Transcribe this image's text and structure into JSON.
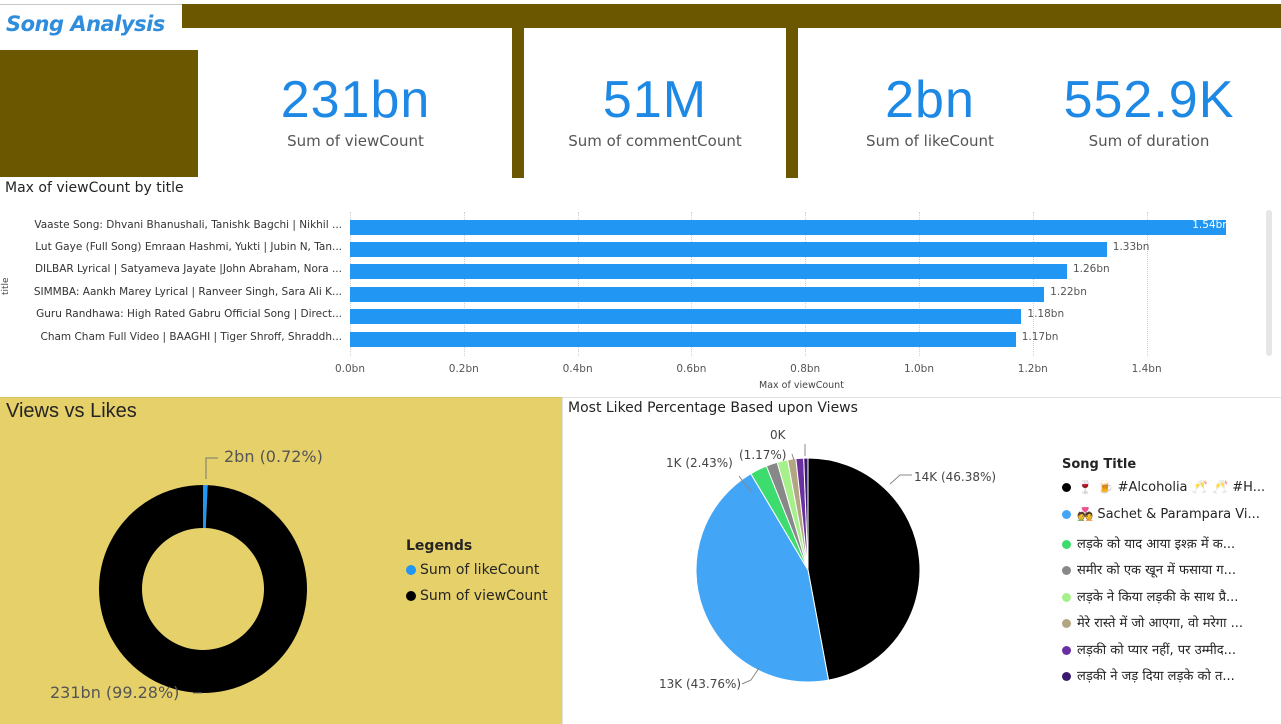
{
  "header": {
    "title": "Song Analysis"
  },
  "kpis": [
    {
      "value": "231bn",
      "label": "Sum of viewCount"
    },
    {
      "value": "51M",
      "label": "Sum of commentCount"
    },
    {
      "value": "2bn",
      "label": "Sum of likeCount"
    },
    {
      "value": "552.9K",
      "label": "Sum of duration"
    }
  ],
  "colors": {
    "olive": "#6b5700",
    "accent": "#1e88e5",
    "bar": "#2196f3",
    "panel": "#e5d06a"
  },
  "chart_data": [
    {
      "type": "bar",
      "orientation": "horizontal",
      "title": "Max of viewCount by title",
      "xlabel": "Max of viewCount",
      "ylabel": "title",
      "categories": [
        "Vaaste Song: Dhvani Bhanushali, Tanishk Bagchi | Nikhil ...",
        "Lut Gaye (Full Song) Emraan Hashmi, Yukti | Jubin N, Tan...",
        "DILBAR Lyrical | Satyameva Jayate |John Abraham, Nora ...",
        "SIMMBA: Aankh Marey Lyrical | Ranveer Singh, Sara Ali K...",
        "Guru Randhawa: High Rated Gabru Official Song | Direct...",
        "Cham Cham Full Video | BAAGHI | Tiger Shroff, Shraddh..."
      ],
      "values": [
        1.54,
        1.33,
        1.26,
        1.22,
        1.18,
        1.17
      ],
      "value_labels": [
        "1.54bn",
        "1.33bn",
        "1.26bn",
        "1.22bn",
        "1.18bn",
        "1.17bn"
      ],
      "xlim": [
        0,
        1.6
      ],
      "xticks": [
        0,
        0.2,
        0.4,
        0.6,
        0.8,
        1.0,
        1.2,
        1.4
      ],
      "xtick_labels": [
        "0.0bn",
        "0.2bn",
        "0.4bn",
        "0.6bn",
        "0.8bn",
        "1.0bn",
        "1.2bn",
        "1.4bn"
      ],
      "grid": true
    },
    {
      "type": "pie",
      "variant": "donut",
      "title": "Views vs Likes",
      "legend_title": "Legends",
      "series": [
        {
          "name": "Sum of likeCount",
          "value": 0.72,
          "label": "2bn (0.72%)",
          "color": "#2196f3"
        },
        {
          "name": "Sum of viewCount",
          "value": 99.28,
          "label": "231bn (99.28%)",
          "color": "#000000"
        }
      ]
    },
    {
      "type": "pie",
      "title": "Most Liked Percentage Based upon Views",
      "legend_title": "Song Title",
      "slices": [
        {
          "name": "🍷 🍺 #Alcoholia 🥂 🥂 #H...",
          "value": 46.38,
          "label": "14K (46.38%)",
          "color": "#000000"
        },
        {
          "name": "💑 Sachet & Parampara Vi...",
          "value": 43.76,
          "label": "13K (43.76%)",
          "color": "#42a5f5"
        },
        {
          "name": "लड़के को याद आया इश्क़ में क...",
          "value": 2.43,
          "label": "1K (2.43%)",
          "color": "#3ddc6e"
        },
        {
          "name": "समीर को एक खून में फसाया ग...",
          "value": 1.6,
          "label": "",
          "color": "#888888"
        },
        {
          "name": "लड़के ने किया लड़की के साथ प्रै...",
          "value": 1.5,
          "label": "",
          "color": "#a5f08a"
        },
        {
          "name": "मेरे रास्ते में जो आएगा, वो मरेगा ...",
          "value": 1.17,
          "label": "(1.17%)",
          "color": "#b4a582"
        },
        {
          "name": "लड़की को प्यार नहीं, पर उम्मीद...",
          "value": 1.1,
          "label": "",
          "color": "#6a2fa0"
        },
        {
          "name": "लड़की ने जड़ दिया लड़के को त...",
          "value": 0.6,
          "label": "0K",
          "color": "#3a1a6e"
        }
      ]
    }
  ]
}
